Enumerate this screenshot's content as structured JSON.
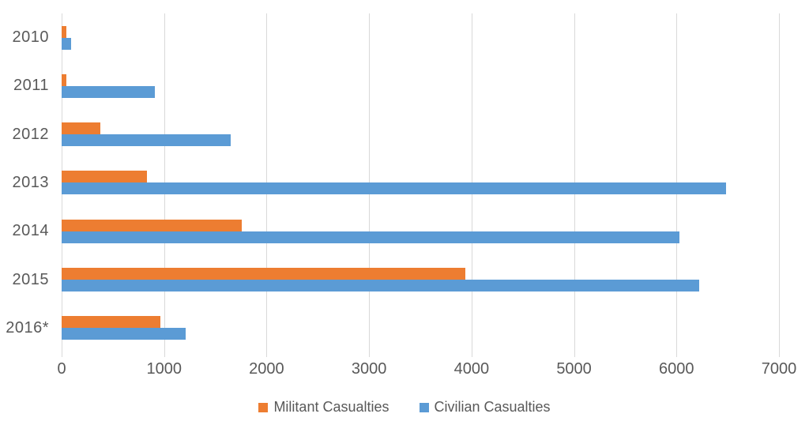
{
  "chart_data": {
    "type": "bar",
    "orientation": "horizontal",
    "title": "",
    "xlabel": "",
    "ylabel": "",
    "xlim": [
      0,
      7000
    ],
    "x_ticks": [
      0,
      1000,
      2000,
      3000,
      4000,
      5000,
      6000,
      7000
    ],
    "grid": true,
    "legend_position": "bottom",
    "categories": [
      "2010",
      "2011",
      "2012",
      "2013",
      "2014",
      "2015",
      "2016*"
    ],
    "series": [
      {
        "name": "Militant Casualties",
        "color": "#ED7D31",
        "values": [
          50,
          50,
          380,
          830,
          1760,
          3940,
          960
        ]
      },
      {
        "name": "Civilian Casualties",
        "color": "#5B9BD5",
        "values": [
          95,
          910,
          1650,
          6480,
          6030,
          6220,
          1210
        ]
      }
    ]
  },
  "colors": {
    "gridline": "#d9d9d9",
    "axis_text": "#595959",
    "background": "#ffffff"
  }
}
